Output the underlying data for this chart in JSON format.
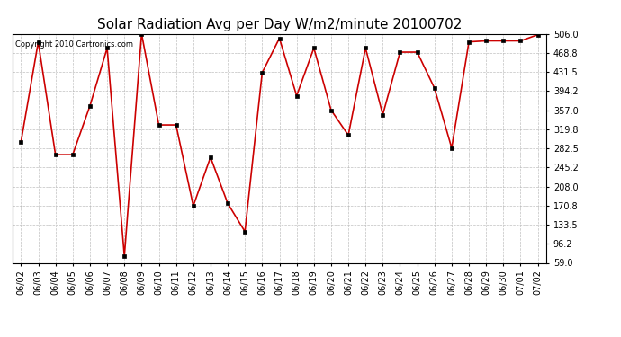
{
  "title": "Solar Radiation Avg per Day W/m2/minute 20100702",
  "copyright_text": "Copyright 2010 Cartronics.com",
  "dates": [
    "06/02",
    "06/03",
    "06/04",
    "06/05",
    "06/06",
    "06/07",
    "06/08",
    "06/09",
    "06/10",
    "06/11",
    "06/12",
    "06/13",
    "06/14",
    "06/15",
    "06/16",
    "06/17",
    "06/18",
    "06/19",
    "06/20",
    "06/21",
    "06/22",
    "06/23",
    "06/24",
    "06/25",
    "06/26",
    "06/27",
    "06/28",
    "06/29",
    "06/30",
    "07/01",
    "07/02"
  ],
  "values": [
    295,
    490,
    270,
    270,
    365,
    478,
    72,
    506,
    328,
    328,
    170,
    265,
    175,
    120,
    430,
    497,
    385,
    478,
    357,
    308,
    478,
    348,
    470,
    470,
    400,
    283,
    490,
    492,
    492,
    492,
    504
  ],
  "line_color": "#cc0000",
  "marker_color": "#000000",
  "bg_color": "#ffffff",
  "plot_bg_color": "#ffffff",
  "grid_color": "#b0b0b0",
  "ymin": 59.0,
  "ymax": 506.0,
  "yticks": [
    59.0,
    96.2,
    133.5,
    170.8,
    208.0,
    245.2,
    282.5,
    319.8,
    357.0,
    394.2,
    431.5,
    468.8,
    506.0
  ],
  "title_fontsize": 11,
  "tick_fontsize": 7,
  "copyright_fontsize": 6
}
